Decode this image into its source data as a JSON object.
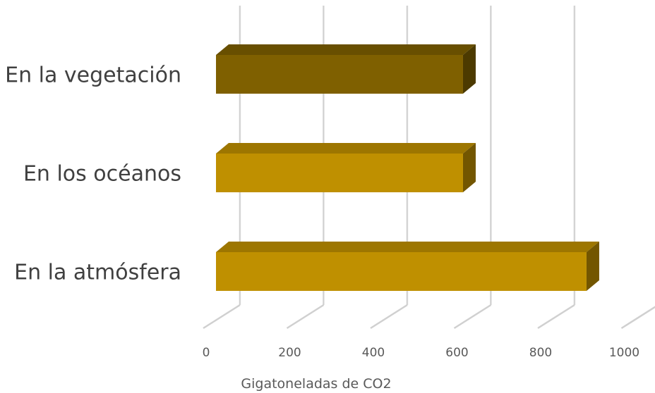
{
  "chart_data": {
    "type": "bar",
    "orientation": "horizontal",
    "style": "3d",
    "categories": [
      "En la vegetación",
      "En los océanos",
      "En la atmósfera"
    ],
    "values": [
      600,
      600,
      900
    ],
    "bar_colors": [
      "#7f6000",
      "#bf9000",
      "#bf9000"
    ],
    "xlabel": "Gigatoneladas de CO2",
    "ylabel": "",
    "xlim": [
      0,
      1000
    ],
    "xticks": [
      0,
      200,
      400,
      600,
      800,
      1000
    ],
    "xtick_labels": [
      "0",
      "200",
      "400",
      "600",
      "800",
      "1000"
    ],
    "grid": true,
    "legend": "none"
  }
}
